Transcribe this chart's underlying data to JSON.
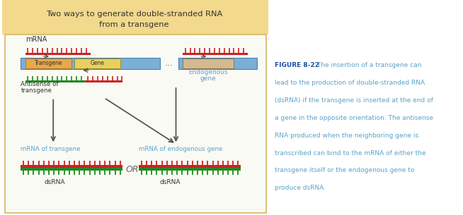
{
  "title_line1": "Two ways to generate double-stranded RNA",
  "title_line2": "from a transgene",
  "title_bg": "#f2d98c",
  "diagram_border": "#d4b860",
  "outer_bg": "#ffffff",
  "caption_bold": "FIGURE 8-22",
  "caption_rest": " The insertion of a transgene can lead to the production of double-stranded RNA (dsRNA) if the transgene is inserted at the end of a gene in the opposite orientation. The antisense RNA produced when the neighboring gene is transcribed can bind to the mRNA of either the transgene itself or the endogenous gene to produce dsRNA.",
  "caption_color": "#5ba3c9",
  "caption_bold_color": "#1a50a0",
  "blue_bar": "#7bafd4",
  "blue_bar_edge": "#4a80b0",
  "orange_box": "#e8a84c",
  "yellow_box": "#e8d060",
  "tan_box": "#d4b890",
  "red": "#cc2222",
  "green": "#228822",
  "label_color": "#5ba3c9",
  "arrow_color": "#555555",
  "text_color": "#5ba3c9"
}
